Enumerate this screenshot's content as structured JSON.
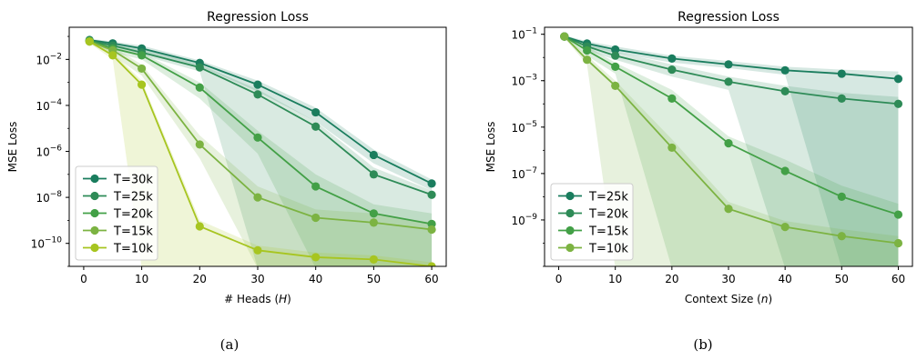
{
  "chart_data": [
    {
      "type": "line",
      "title": "Regression Loss",
      "xlabel_main": "# Heads (",
      "xlabel_var": "H",
      "xlabel_close": ")",
      "ylabel": "MSE Loss",
      "caption": "(a)",
      "yscale": "log",
      "xlim": [
        -2.5,
        62.5
      ],
      "ylim": [
        1e-11,
        0.25
      ],
      "xticks": [
        0,
        10,
        20,
        30,
        40,
        50,
        60
      ],
      "yticks": [
        {
          "exp": -2,
          "label": "10",
          "sup": "−2"
        },
        {
          "exp": -4,
          "label": "10",
          "sup": "−4"
        },
        {
          "exp": -6,
          "label": "10",
          "sup": "−6"
        },
        {
          "exp": -8,
          "label": "10",
          "sup": "−8"
        },
        {
          "exp": -10,
          "label": "10",
          "sup": "−10"
        }
      ],
      "legend_position": "lower-left",
      "series": [
        {
          "name": "T=30k",
          "color": "#1a7d5e",
          "x": [
            1,
            5,
            10,
            20,
            30,
            40,
            50,
            60
          ],
          "y": [
            0.07,
            0.05,
            0.03,
            0.007,
            0.0008,
            5e-05,
            7e-07,
            4e-08
          ],
          "band_lo": [
            0.06,
            0.04,
            0.02,
            0.005,
            0.0004,
            2e-05,
            3e-07,
            2e-08
          ],
          "band_hi": [
            0.08,
            0.06,
            0.04,
            0.009,
            0.0012,
            8e-05,
            1.2e-06,
            6e-08
          ],
          "band_floor_from": null
        },
        {
          "name": "T=25k",
          "color": "#2e8b57",
          "x": [
            1,
            5,
            10,
            20,
            30,
            40,
            50,
            60
          ],
          "y": [
            0.065,
            0.04,
            0.02,
            0.0045,
            0.0003,
            1.2e-05,
            1e-07,
            1.3e-08
          ],
          "band_lo": [
            0.055,
            0.03,
            0.015,
            0.003,
            0.0001,
            4e-06,
            3e-08,
            5e-09
          ],
          "band_hi": [
            0.075,
            0.05,
            0.03,
            0.006,
            0.0005,
            2e-05,
            2e-07,
            2e-08
          ],
          "band_floor_from": 30
        },
        {
          "name": "T=20k",
          "color": "#43a047",
          "x": [
            1,
            5,
            10,
            20,
            30,
            40,
            50,
            60
          ],
          "y": [
            0.065,
            0.03,
            0.015,
            0.0006,
            4e-06,
            3e-08,
            2e-09,
            7e-10
          ],
          "band_lo": [
            0.055,
            0.02,
            0.01,
            0.0002,
            8e-07,
            5e-09,
            7e-10,
            3e-10
          ],
          "band_hi": [
            0.075,
            0.04,
            0.02,
            0.001,
            8e-06,
            1e-07,
            5e-09,
            2e-09
          ],
          "band_floor_from": 40
        },
        {
          "name": "T=15k",
          "color": "#7cb342",
          "x": [
            1,
            5,
            10,
            20,
            30,
            40,
            50,
            60
          ],
          "y": [
            0.06,
            0.025,
            0.004,
            2e-06,
            1e-08,
            1.3e-09,
            8e-10,
            4e-10
          ],
          "band_lo": [
            0.05,
            0.015,
            0.002,
            5e-07,
            4e-09,
            6e-10,
            4e-10,
            2e-10
          ],
          "band_hi": [
            0.07,
            0.035,
            0.006,
            5e-06,
            3e-08,
            3e-09,
            2e-09,
            8e-10
          ],
          "band_floor_from": 30
        },
        {
          "name": "T=10k",
          "color": "#a7c520",
          "x": [
            1,
            5,
            10,
            20,
            30,
            40,
            50,
            60
          ],
          "y": [
            0.06,
            0.015,
            0.0008,
            5.5e-10,
            5e-11,
            2.5e-11,
            2e-11,
            1e-11
          ],
          "band_lo": [
            0.05,
            0.01,
            0.0005,
            3e-10,
            3e-11,
            1.5e-11,
            1.2e-11,
            6e-12
          ],
          "band_hi": [
            0.07,
            0.02,
            0.0012,
            1e-09,
            8e-11,
            4e-11,
            3e-11,
            1.5e-11
          ],
          "band_floor_from": 10
        }
      ]
    },
    {
      "type": "line",
      "title": "Regression Loss",
      "xlabel_main": "Context Size (",
      "xlabel_var": "n",
      "xlabel_close": ")",
      "ylabel": "MSE Loss",
      "caption": "(b)",
      "yscale": "log",
      "xlim": [
        -2.5,
        62.5
      ],
      "ylim": [
        1e-11,
        0.2
      ],
      "xticks": [
        0,
        10,
        20,
        30,
        40,
        50,
        60
      ],
      "yticks": [
        {
          "exp": -1,
          "label": "10",
          "sup": "−1"
        },
        {
          "exp": -3,
          "label": "10",
          "sup": "−3"
        },
        {
          "exp": -5,
          "label": "10",
          "sup": "−5"
        },
        {
          "exp": -7,
          "label": "10",
          "sup": "−7"
        },
        {
          "exp": -9,
          "label": "10",
          "sup": "−9"
        }
      ],
      "legend_position": "lower-left",
      "series": [
        {
          "name": "T=25k",
          "color": "#1a7d5e",
          "x": [
            1,
            5,
            10,
            20,
            30,
            40,
            50,
            60
          ],
          "y": [
            0.08,
            0.04,
            0.022,
            0.009,
            0.005,
            0.0028,
            0.002,
            0.0012
          ],
          "band_lo": [
            0.07,
            0.03,
            0.016,
            0.006,
            0.0035,
            0.0018,
            0.0012,
            0.0007
          ],
          "band_hi": [
            0.09,
            0.05,
            0.03,
            0.012,
            0.007,
            0.004,
            0.003,
            0.0025
          ],
          "band_floor_from": 50
        },
        {
          "name": "T=20k",
          "color": "#2e8b57",
          "x": [
            1,
            5,
            10,
            20,
            30,
            40,
            50,
            60
          ],
          "y": [
            0.08,
            0.03,
            0.012,
            0.003,
            0.0009,
            0.00035,
            0.00017,
            0.0001
          ],
          "band_lo": [
            0.07,
            0.02,
            0.008,
            0.0015,
            0.0004,
            1.5e-05,
            1e-05,
            8e-06
          ],
          "band_hi": [
            0.09,
            0.04,
            0.018,
            0.005,
            0.0015,
            0.0006,
            0.0003,
            0.0002
          ],
          "band_floor_from": 40
        },
        {
          "name": "T=15k",
          "color": "#43a047",
          "x": [
            1,
            5,
            10,
            20,
            30,
            40,
            50,
            60
          ],
          "y": [
            0.08,
            0.02,
            0.004,
            0.00017,
            2e-06,
            1.3e-07,
            1e-08,
            1.7e-09
          ],
          "band_lo": [
            0.07,
            0.012,
            0.002,
            5e-05,
            3e-07,
            2e-08,
            3e-09,
            6e-10
          ],
          "band_hi": [
            0.09,
            0.03,
            0.006,
            0.0004,
            4e-06,
            4e-07,
            3e-08,
            5e-09
          ],
          "band_floor_from": 20
        },
        {
          "name": "T=10k",
          "color": "#7cb342",
          "x": [
            1,
            5,
            10,
            20,
            30,
            40,
            50,
            60
          ],
          "y": [
            0.08,
            0.008,
            0.0006,
            1.3e-06,
            3e-09,
            5e-10,
            2e-10,
            1e-10
          ],
          "band_lo": [
            0.07,
            0.005,
            0.0003,
            5e-07,
            1.5e-09,
            3e-10,
            1.2e-10,
            6e-11
          ],
          "band_hi": [
            0.09,
            0.012,
            0.001,
            3e-06,
            6e-09,
            9e-10,
            4e-10,
            2e-10
          ],
          "band_floor_from": 10
        }
      ]
    }
  ]
}
